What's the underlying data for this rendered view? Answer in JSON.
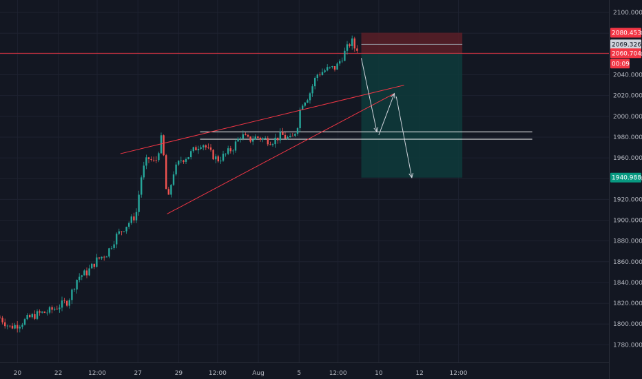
{
  "chart_data": {
    "type": "candlestick",
    "y_axis": {
      "range": [
        1763,
        2112
      ],
      "ticks": [
        "2100.000",
        "2080.000",
        "2060.000",
        "2040.000",
        "2020.000",
        "2000.000",
        "1980.000",
        "1960.000",
        "1940.000",
        "1920.000",
        "1900.000",
        "1880.000",
        "1860.000",
        "1840.000",
        "1820.000",
        "1800.000",
        "1780.000"
      ],
      "tick_values": [
        2100,
        2080,
        2060,
        2040,
        2020,
        2000,
        1980,
        1960,
        1940,
        1920,
        1900,
        1880,
        1860,
        1840,
        1820,
        1800,
        1780
      ]
    },
    "x_axis": {
      "ticks": [
        "20",
        "22",
        "12:00",
        "27",
        "29",
        "12:00",
        "Aug",
        "5",
        "12:00",
        "10",
        "12",
        "12:00"
      ],
      "tick_days": [
        0.9,
        3.0,
        5.0,
        7.1,
        9.2,
        11.2,
        13.3,
        15.4,
        17.4,
        19.5,
        21.6,
        23.6
      ]
    },
    "series_close": [
      [
        0,
        1806
      ],
      [
        0.5,
        1797
      ],
      [
        1,
        1800
      ],
      [
        1.5,
        1806
      ],
      [
        2,
        1810
      ],
      [
        2.5,
        1812
      ],
      [
        3,
        1817
      ],
      [
        3.5,
        1822
      ],
      [
        4,
        1845
      ],
      [
        4.5,
        1850
      ],
      [
        5,
        1862
      ],
      [
        5.5,
        1868
      ],
      [
        6,
        1885
      ],
      [
        6.5,
        1895
      ],
      [
        7,
        1905
      ],
      [
        7.3,
        1945
      ],
      [
        7.6,
        1960
      ],
      [
        8,
        1955
      ],
      [
        8.3,
        1978
      ],
      [
        8.4,
        1965
      ],
      [
        8.5,
        1950
      ],
      [
        8.6,
        1912
      ],
      [
        8.9,
        1945
      ],
      [
        9.3,
        1958
      ],
      [
        9.7,
        1962
      ],
      [
        10,
        1968
      ],
      [
        10.4,
        1975
      ],
      [
        10.8,
        1965
      ],
      [
        11.2,
        1958
      ],
      [
        11.6,
        1963
      ],
      [
        12,
        1970
      ],
      [
        12.4,
        1982
      ],
      [
        12.8,
        1977
      ],
      [
        13.2,
        1980
      ],
      [
        13.6,
        1978
      ],
      [
        14,
        1976
      ],
      [
        14.5,
        1982
      ],
      [
        15,
        1977
      ],
      [
        15.3,
        1990
      ],
      [
        15.5,
        2012
      ],
      [
        15.9,
        2020
      ],
      [
        16.3,
        2040
      ],
      [
        16.8,
        2045
      ],
      [
        17.3,
        2047
      ],
      [
        17.7,
        2060
      ],
      [
        18.1,
        2073
      ],
      [
        18.3,
        2064
      ],
      [
        18.5,
        2068
      ]
    ],
    "levels": {
      "stop": 2080.453,
      "current": 2069.326,
      "entry": 2060.704,
      "target": 1940.988,
      "support_top": 1985,
      "support_bottom": 1978
    },
    "trendlines": [
      {
        "color": "#f23645",
        "from": [
          6.2,
          1964
        ],
        "to": [
          20.8,
          2030
        ]
      },
      {
        "color": "#f23645",
        "from": [
          8.6,
          1906
        ],
        "to": [
          20.3,
          2022
        ]
      }
    ],
    "arrows": [
      [
        [
          18.6,
          2056
        ],
        [
          19.4,
          1985
        ]
      ],
      [
        [
          19.5,
          1982
        ],
        [
          20.3,
          2022
        ]
      ],
      [
        [
          20.4,
          2019
        ],
        [
          21.2,
          1941
        ]
      ]
    ],
    "position_box": {
      "x_from": 18.6,
      "x_to": 23.8
    }
  },
  "price_tags": {
    "stop": "2080.453",
    "current": "2069.326",
    "entry": "2060.704",
    "countdown": "00:09",
    "target": "1940.988"
  },
  "colors": {
    "background": "#131722",
    "up": "#26a69a",
    "down": "#ef5350",
    "stop_zone": "#5a1f27",
    "target_zone": "#0e3b3b",
    "trendline": "#f23645",
    "support": "#ffffff",
    "arrow": "#d1d4dc"
  }
}
